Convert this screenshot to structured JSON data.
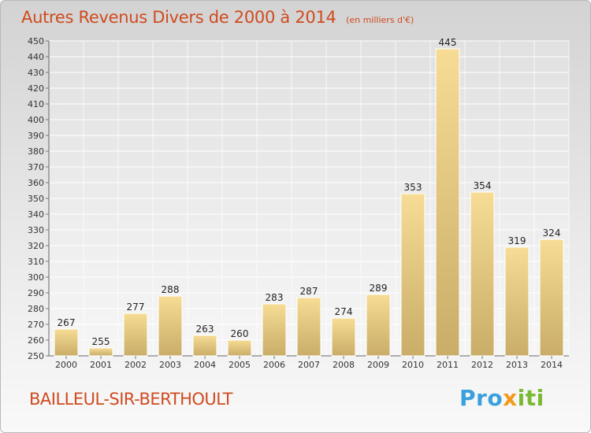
{
  "header": {
    "title": "Autres Revenus Divers de 2000 à 2014",
    "subtitle": "(en milliers d'€)"
  },
  "footer": {
    "commune": "BAILLEUL-SIR-BERTHOULT",
    "logo_parts": [
      "Pro",
      "x",
      "iti"
    ]
  },
  "colors": {
    "title": "#cf4b1f",
    "bar_light": "#f6dc94",
    "bar_dark": "#c9ad68",
    "logo_blue": "#3aa0dd",
    "logo_orange": "#f39a1a",
    "logo_green": "#7ab932"
  },
  "chart_data": {
    "type": "bar",
    "title": "Autres Revenus Divers de 2000 à 2014",
    "subtitle": "(en milliers d'€)",
    "xlabel": "",
    "ylabel": "",
    "categories": [
      "2000",
      "2001",
      "2002",
      "2003",
      "2004",
      "2005",
      "2006",
      "2007",
      "2008",
      "2009",
      "2010",
      "2011",
      "2012",
      "2013",
      "2014"
    ],
    "values": [
      267,
      255,
      277,
      288,
      263,
      260,
      283,
      287,
      274,
      289,
      353,
      445,
      354,
      319,
      324
    ],
    "ylim": [
      250,
      450
    ],
    "ytick_step": 10,
    "grid": true,
    "legend": "none"
  }
}
